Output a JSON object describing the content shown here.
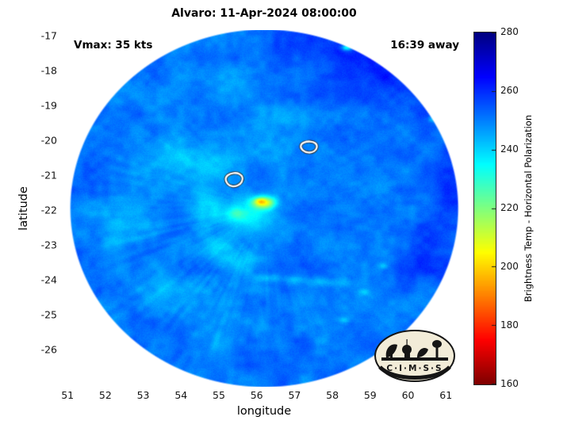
{
  "figure": {
    "annotations": {
      "vmax": "Vmax: 35 kts",
      "time_away": "16:39 away"
    }
  },
  "logo": {
    "letters": "C·I·M·S·S"
  },
  "chart_data": {
    "type": "heatmap",
    "title": "Alvaro: 11-Apr-2024 08:00:00",
    "storm": {
      "name": "Alvaro",
      "datetime": "11-Apr-2024 08:00:00",
      "vmax_kts": 35,
      "time_away": "16:39 away"
    },
    "xlabel": "longitude",
    "ylabel": "latitude",
    "xlim": [
      50.85,
      61.54
    ],
    "ylim": [
      -27.07,
      -16.84
    ],
    "xticks": [
      51,
      52,
      53,
      54,
      55,
      56,
      57,
      58,
      59,
      60,
      61
    ],
    "yticks": [
      -17,
      -18,
      -19,
      -20,
      -21,
      -22,
      -23,
      -24,
      -25,
      -26
    ],
    "grid": false,
    "colorbar": {
      "label": "Brightness Temp - Horizontal Polarization",
      "min": 160,
      "max": 280,
      "ticks": [
        280,
        260,
        240,
        220,
        200,
        180,
        160
      ],
      "colormap": "reversed-jet"
    },
    "swath": {
      "shape": "circular-scan",
      "center_lon": 56.2,
      "center_lat": -21.95,
      "radius_deg": 5.12,
      "background_temp_K": 251
    },
    "noise": [
      {
        "scale": 0.55,
        "amp": 3.2
      },
      {
        "scale": 0.18,
        "amp": 2.0
      }
    ],
    "grain_amp": 1.2,
    "features_format": "[lon, lat, sigma_lon_deg, sigma_lat_deg, delta_T_K]",
    "features": [
      [
        56.2,
        -21.78,
        0.3,
        0.17,
        -38
      ],
      [
        56.08,
        -21.74,
        0.13,
        0.09,
        -12
      ],
      [
        55.85,
        -22.1,
        0.8,
        0.55,
        -13
      ],
      [
        54.7,
        -21.8,
        0.45,
        0.75,
        -10
      ],
      [
        55.0,
        -23.1,
        0.55,
        0.45,
        -10
      ],
      [
        55.7,
        -23.5,
        0.6,
        0.35,
        -9
      ],
      [
        55.5,
        -22.1,
        0.26,
        0.2,
        -14
      ],
      [
        54.6,
        -20.6,
        1.0,
        0.45,
        -7
      ],
      [
        53.6,
        -20.2,
        0.8,
        0.6,
        -5
      ],
      [
        56.3,
        -23.95,
        0.3,
        0.12,
        -8
      ],
      [
        57.0,
        -24.0,
        0.3,
        0.12,
        -8
      ],
      [
        57.7,
        -24.05,
        0.3,
        0.12,
        -7
      ],
      [
        58.25,
        -24.1,
        0.25,
        0.12,
        -7
      ],
      [
        59.6,
        -18.2,
        1.5,
        1.1,
        9
      ],
      [
        57.8,
        -17.3,
        1.3,
        0.6,
        7
      ],
      [
        61.3,
        -21.5,
        0.8,
        1.4,
        7
      ],
      [
        60.4,
        -23.4,
        0.9,
        0.9,
        5
      ],
      [
        58.38,
        -17.34,
        0.14,
        0.09,
        -26
      ],
      [
        60.64,
        -19.4,
        0.1,
        0.08,
        -10
      ],
      [
        58.85,
        -24.35,
        0.15,
        0.1,
        -10
      ],
      [
        59.35,
        -23.6,
        0.12,
        0.09,
        -9
      ],
      [
        58.3,
        -25.15,
        0.18,
        0.1,
        -9
      ],
      [
        55.0,
        -25.2,
        1.1,
        0.7,
        -6
      ],
      [
        52.4,
        -22.3,
        0.9,
        1.1,
        -5
      ],
      [
        53.7,
        -24.3,
        0.9,
        0.6,
        -6
      ],
      [
        56.8,
        -19.8,
        1.0,
        0.7,
        -4
      ],
      [
        55.3,
        -18.6,
        1.0,
        0.8,
        -4
      ]
    ],
    "contours": [
      {
        "points": [
          [
            55.18,
            -21.05
          ],
          [
            55.3,
            -20.95
          ],
          [
            55.48,
            -20.93
          ],
          [
            55.6,
            -21.0
          ],
          [
            55.64,
            -21.12
          ],
          [
            55.57,
            -21.26
          ],
          [
            55.42,
            -21.33
          ],
          [
            55.27,
            -21.3
          ],
          [
            55.18,
            -21.18
          ]
        ]
      },
      {
        "points": [
          [
            57.17,
            -20.1
          ],
          [
            57.32,
            -20.03
          ],
          [
            57.5,
            -20.04
          ],
          [
            57.6,
            -20.13
          ],
          [
            57.58,
            -20.27
          ],
          [
            57.45,
            -20.36
          ],
          [
            57.28,
            -20.34
          ],
          [
            57.16,
            -20.23
          ]
        ]
      }
    ]
  }
}
